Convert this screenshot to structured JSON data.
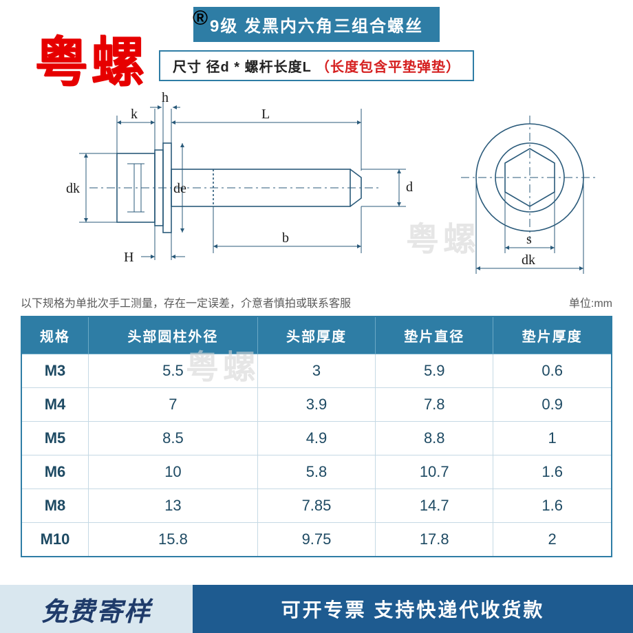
{
  "header": {
    "title": "9级 发黑内六角三组合螺丝",
    "subtitle_prefix": "尺寸   径d * 螺杆长度L",
    "subtitle_note": "（长度包含平垫弹垫）"
  },
  "overlay": {
    "brand_watermark": "粤螺",
    "reg_symbol": "®",
    "ghost_watermark": "粤螺"
  },
  "diagram": {
    "labels": {
      "k": "k",
      "h": "h",
      "L": "L",
      "dk_left": "dk",
      "de": "de",
      "d": "d",
      "H": "H",
      "b": "b",
      "s": "s",
      "dk_right": "dk"
    },
    "line_color": "#2a5a7a",
    "stroke_width": 1.6
  },
  "note": {
    "left": "以下规格为单批次手工测量，存在一定误差，介意者慎拍或联系客服",
    "right": "单位:mm"
  },
  "table": {
    "columns": [
      "规格",
      "头部圆柱外径",
      "头部厚度",
      "垫片直径",
      "垫片厚度"
    ],
    "rows": [
      [
        "M3",
        "5.5",
        "3",
        "5.9",
        "0.6"
      ],
      [
        "M4",
        "7",
        "3.9",
        "7.8",
        "0.9"
      ],
      [
        "M5",
        "8.5",
        "4.9",
        "8.8",
        "1"
      ],
      [
        "M6",
        "10",
        "5.8",
        "10.7",
        "1.6"
      ],
      [
        "M8",
        "13",
        "7.85",
        "14.7",
        "1.6"
      ],
      [
        "M10",
        "15.8",
        "9.75",
        "17.8",
        "2"
      ]
    ],
    "header_bg": "#2e7da5",
    "header_fg": "#ffffff",
    "cell_fg": "#1e4a63",
    "border_color": "#c5d9e4"
  },
  "banner": {
    "left_text": "免费寄样",
    "right_text": "可开专票 支持快递代收货款",
    "left_bg": "#d9e7ef",
    "left_fg": "#1f3b6a",
    "right_bg": "#1e5b90",
    "right_fg": "#ffffff"
  }
}
